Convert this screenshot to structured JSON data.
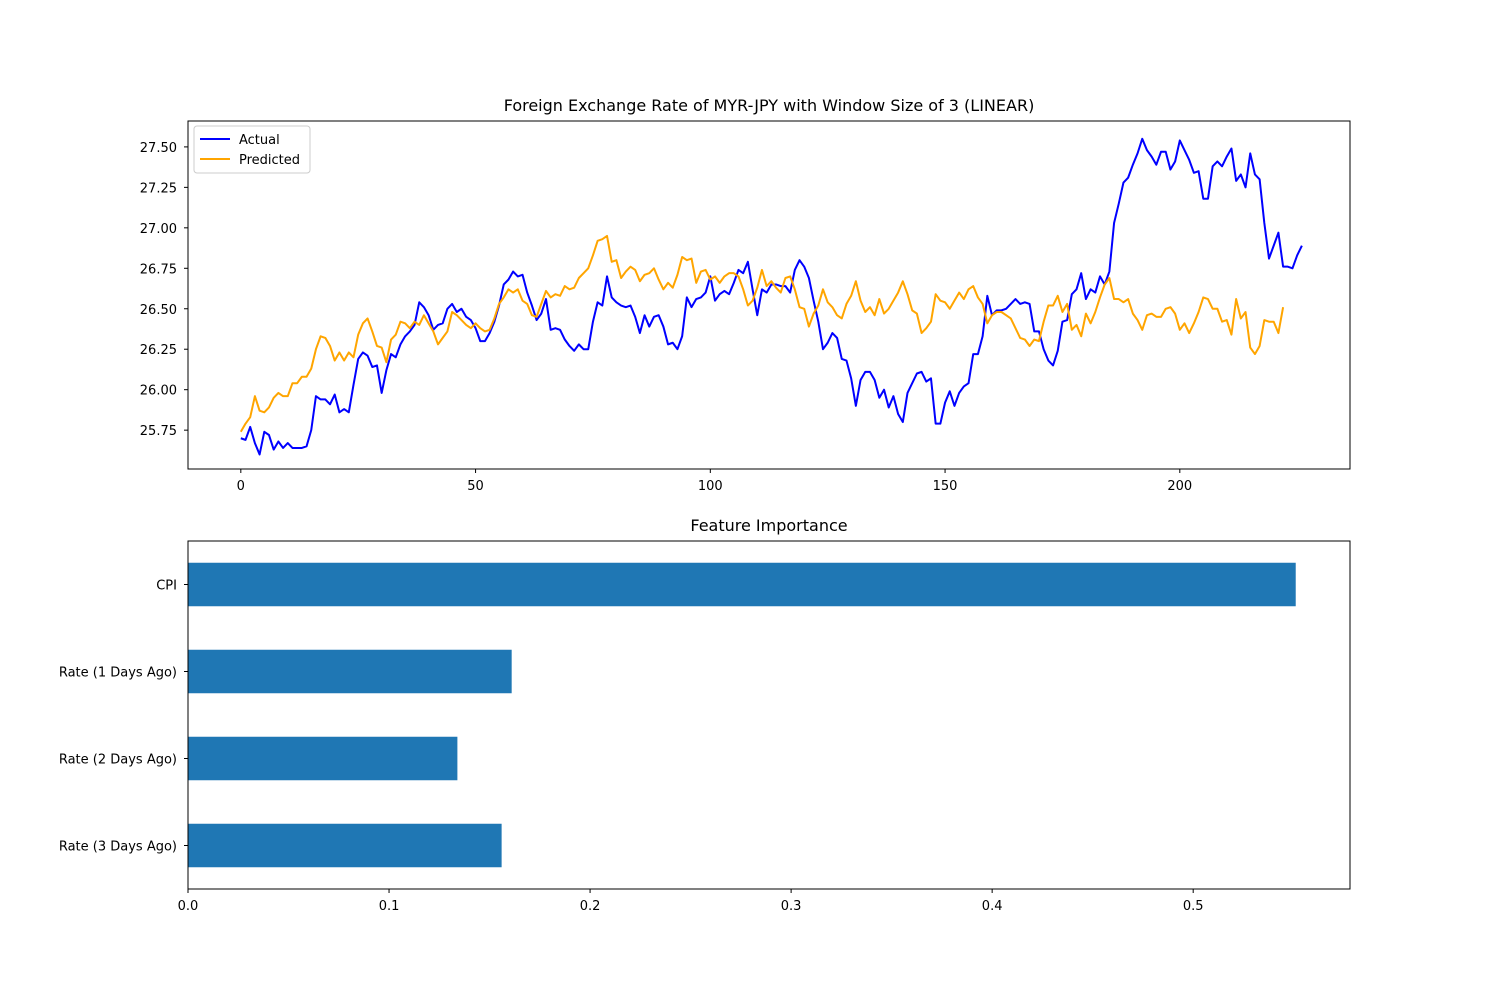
{
  "colors": {
    "actual": "#0000ff",
    "predicted": "#ffa500",
    "bar": "#1f77b4",
    "axes": "#000000",
    "legend_border": "#cccccc",
    "background": "#ffffff"
  },
  "chart_data": [
    {
      "type": "line",
      "title": "Foreign Exchange Rate of MYR-JPY with Window Size of 3 (LINEAR)",
      "xlabel": "",
      "ylabel": "",
      "xlim": [
        -11.25,
        236.25
      ],
      "ylim": [
        25.51,
        27.66
      ],
      "xticks": [
        0,
        50,
        100,
        150,
        200
      ],
      "xtick_labels": [
        "0",
        "50",
        "100",
        "150",
        "200"
      ],
      "yticks": [
        25.75,
        26.0,
        26.25,
        26.5,
        26.75,
        27.0,
        27.25,
        27.5
      ],
      "ytick_labels": [
        "25.75",
        "26.00",
        "26.25",
        "26.50",
        "26.75",
        "27.00",
        "27.25",
        "27.50"
      ],
      "grid": false,
      "legend": "top-left",
      "series": [
        {
          "name": "Actual",
          "color": "#0000ff",
          "values": [
            25.7,
            25.69,
            25.77,
            25.67,
            25.6,
            25.74,
            25.72,
            25.63,
            25.68,
            25.64,
            25.67,
            25.64,
            25.64,
            25.64,
            25.65,
            25.75,
            25.96,
            25.94,
            25.94,
            25.91,
            25.97,
            25.86,
            25.88,
            25.86,
            26.03,
            26.19,
            26.23,
            26.21,
            26.14,
            26.15,
            25.98,
            26.12,
            26.22,
            26.2,
            26.28,
            26.33,
            26.36,
            26.4,
            26.54,
            26.51,
            26.46,
            26.37,
            26.4,
            26.41,
            26.5,
            26.53,
            26.48,
            26.5,
            26.45,
            26.43,
            26.38,
            26.3,
            26.3,
            26.35,
            26.42,
            26.52,
            26.65,
            26.68,
            26.73,
            26.7,
            26.71,
            26.6,
            26.52,
            26.43,
            26.47,
            26.56,
            26.37,
            26.38,
            26.37,
            26.31,
            26.27,
            26.24,
            26.28,
            26.25,
            26.25,
            26.42,
            26.54,
            26.52,
            26.7,
            26.57,
            26.54,
            26.52,
            26.51,
            26.52,
            26.45,
            26.35,
            26.46,
            26.39,
            26.45,
            26.46,
            26.39,
            26.28,
            26.29,
            26.25,
            26.33,
            26.57,
            26.51,
            26.56,
            26.57,
            26.6,
            26.7,
            26.55,
            26.59,
            26.61,
            26.59,
            26.66,
            26.74,
            26.72,
            26.79,
            26.62,
            26.46,
            26.62,
            26.6,
            26.65,
            26.65,
            26.64,
            26.64,
            26.6,
            26.74,
            26.8,
            26.76,
            26.69,
            26.55,
            26.42,
            26.25,
            26.29,
            26.35,
            26.32,
            26.19,
            26.18,
            26.07,
            25.9,
            26.06,
            26.11,
            26.11,
            26.06,
            25.95,
            26.0,
            25.89,
            25.96,
            25.85,
            25.8,
            25.98,
            26.04,
            26.1,
            26.11,
            26.05,
            26.07,
            25.79,
            25.79,
            25.92,
            25.99,
            25.9,
            25.98,
            26.02,
            26.04,
            26.22,
            26.22,
            26.33,
            26.58,
            26.46,
            26.49,
            26.49,
            26.5,
            26.53,
            26.56,
            26.53,
            26.54,
            26.53,
            26.36,
            26.36,
            26.25,
            26.18,
            26.15,
            26.24,
            26.42,
            26.43,
            26.59,
            26.62,
            26.72,
            26.56,
            26.62,
            26.6,
            26.7,
            26.65,
            26.73,
            27.03,
            27.15,
            27.28,
            27.31,
            27.39,
            27.46,
            27.55,
            27.48,
            27.44,
            27.39,
            27.47,
            27.47,
            27.36,
            27.41,
            27.54,
            27.48,
            27.42,
            27.34,
            27.35,
            27.18,
            27.18,
            27.38,
            27.41,
            27.38,
            27.44,
            27.49,
            27.29,
            27.33,
            27.25,
            27.46,
            27.33,
            27.3,
            27.03,
            26.81,
            26.89,
            26.97,
            26.76,
            26.76,
            26.75,
            26.83,
            26.89
          ]
        },
        {
          "name": "Predicted",
          "color": "#ffa500",
          "values": [
            25.74,
            25.79,
            25.83,
            25.96,
            25.87,
            25.86,
            25.89,
            25.95,
            25.98,
            25.96,
            25.96,
            26.04,
            26.04,
            26.08,
            26.08,
            26.13,
            26.25,
            26.33,
            26.32,
            26.27,
            26.18,
            26.23,
            26.18,
            26.23,
            26.2,
            26.34,
            26.41,
            26.44,
            26.36,
            26.27,
            26.26,
            26.17,
            26.31,
            26.34,
            26.42,
            26.41,
            26.38,
            26.42,
            26.4,
            26.46,
            26.41,
            26.36,
            26.28,
            26.32,
            26.36,
            26.48,
            26.46,
            26.43,
            26.4,
            26.38,
            26.41,
            26.38,
            26.36,
            26.37,
            26.44,
            26.53,
            26.57,
            26.62,
            26.6,
            26.62,
            26.55,
            26.53,
            26.46,
            26.45,
            26.53,
            26.61,
            26.57,
            26.59,
            26.58,
            26.64,
            26.62,
            26.63,
            26.69,
            26.72,
            26.75,
            26.83,
            26.92,
            26.93,
            26.95,
            26.79,
            26.8,
            26.69,
            26.73,
            26.76,
            26.74,
            26.67,
            26.71,
            26.72,
            26.75,
            26.68,
            26.62,
            26.66,
            26.63,
            26.71,
            26.82,
            26.8,
            26.81,
            26.66,
            26.73,
            26.74,
            26.68,
            26.7,
            26.66,
            26.7,
            26.72,
            26.72,
            26.7,
            26.62,
            26.52,
            26.55,
            26.63,
            26.74,
            26.64,
            26.67,
            26.63,
            26.6,
            26.69,
            26.7,
            26.62,
            26.51,
            26.5,
            26.39,
            26.47,
            26.52,
            26.62,
            26.54,
            26.51,
            26.46,
            26.44,
            26.53,
            26.58,
            26.67,
            26.55,
            26.48,
            26.51,
            26.46,
            26.56,
            26.47,
            26.5,
            26.55,
            26.6,
            26.67,
            26.59,
            26.49,
            26.47,
            26.35,
            26.38,
            26.42,
            26.59,
            26.55,
            26.54,
            26.5,
            26.55,
            26.6,
            26.56,
            26.62,
            26.64,
            26.57,
            26.53,
            26.41,
            26.46,
            26.48,
            26.48,
            26.46,
            26.44,
            26.38,
            26.32,
            26.31,
            26.27,
            26.31,
            26.3,
            26.42,
            26.52,
            26.52,
            26.58,
            26.48,
            26.53,
            26.37,
            26.4,
            26.33,
            26.47,
            26.41,
            26.48,
            26.57,
            26.65,
            26.69,
            26.56,
            26.56,
            26.54,
            26.56,
            26.47,
            26.43,
            26.37,
            26.46,
            26.47,
            26.45,
            26.45,
            26.5,
            26.51,
            26.47,
            26.37,
            26.41,
            26.35,
            26.41,
            26.48,
            26.57,
            26.56,
            26.5,
            26.5,
            26.42,
            26.43,
            26.34,
            26.56,
            26.44,
            26.48,
            26.26,
            26.22,
            26.27,
            26.43,
            26.42,
            26.42,
            26.35,
            26.51
          ]
        }
      ]
    },
    {
      "type": "bar",
      "orientation": "horizontal",
      "title": "Feature Importance",
      "xlabel": "",
      "ylabel": "",
      "categories": [
        "CPI",
        "Rate (1 Days Ago)",
        "Rate (2 Days Ago)",
        "Rate (3 Days Ago)"
      ],
      "values": [
        0.551,
        0.161,
        0.134,
        0.156
      ],
      "xlim": [
        0,
        0.578
      ],
      "xticks": [
        0.0,
        0.1,
        0.2,
        0.3,
        0.4,
        0.5
      ],
      "xtick_labels": [
        "0.0",
        "0.1",
        "0.2",
        "0.3",
        "0.4",
        "0.5"
      ],
      "color": "#1f77b4",
      "grid": false
    }
  ]
}
